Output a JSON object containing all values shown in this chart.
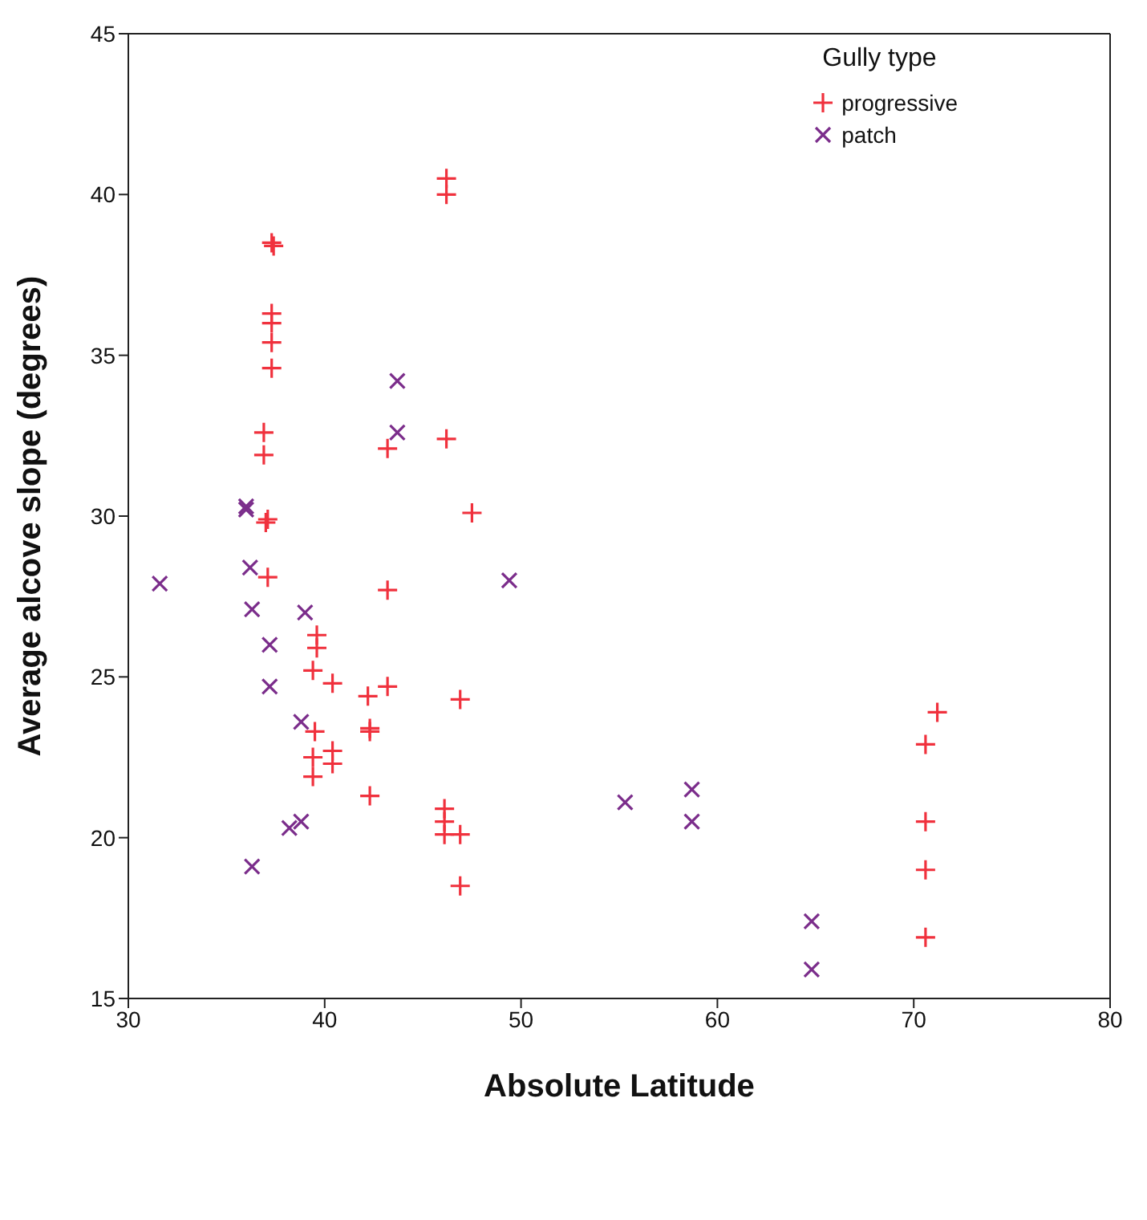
{
  "chart_data": {
    "type": "scatter",
    "xlabel": "Absolute Latitude",
    "ylabel": "Average alcove slope (degrees)",
    "legend_title": "Gully type",
    "legend": "top right",
    "xlim": [
      30,
      80
    ],
    "xticks": [
      30,
      40,
      50,
      60,
      70,
      80
    ],
    "ylim": [
      15,
      45
    ],
    "yticks": [
      15,
      20,
      25,
      30,
      35,
      40,
      45
    ],
    "series": [
      {
        "name": "progressive",
        "color": "#f0313d",
        "marker": "plus",
        "x": [
          37.3,
          37.4,
          37.3,
          37.3,
          37.3,
          37.3,
          36.9,
          36.9,
          37.1,
          37.0,
          37.1,
          46.2,
          46.2,
          43.2,
          46.2,
          47.5,
          43.2,
          39.6,
          39.6,
          39.4,
          40.4,
          39.5,
          40.4,
          40.4,
          39.4,
          39.4,
          43.2,
          42.2,
          46.9,
          42.3,
          42.3,
          42.3,
          46.1,
          46.1,
          46.1,
          46.9,
          46.9,
          71.2,
          70.6,
          70.6,
          70.6,
          70.6
        ],
        "values": [
          38.5,
          38.4,
          36.3,
          36.0,
          35.4,
          34.6,
          32.6,
          31.9,
          29.9,
          29.8,
          28.1,
          40.5,
          40.0,
          32.1,
          32.4,
          30.1,
          27.7,
          26.3,
          25.9,
          25.2,
          24.8,
          23.3,
          22.7,
          22.3,
          22.5,
          21.9,
          24.7,
          24.4,
          24.3,
          23.4,
          23.3,
          21.3,
          20.9,
          20.5,
          20.1,
          20.1,
          18.5,
          23.9,
          22.9,
          20.5,
          19.0,
          16.9
        ]
      },
      {
        "name": "patch",
        "color": "#7b2d8b",
        "marker": "cross",
        "x": [
          36.0,
          36.0,
          36.2,
          31.6,
          36.3,
          39.0,
          37.2,
          37.2,
          38.8,
          38.8,
          38.2,
          36.3,
          43.7,
          43.7,
          49.4,
          55.3,
          58.7,
          58.7,
          64.8,
          64.8
        ],
        "values": [
          30.2,
          30.3,
          28.4,
          27.9,
          27.1,
          27.0,
          26.0,
          24.7,
          23.6,
          20.5,
          20.3,
          19.1,
          34.2,
          32.6,
          28.0,
          21.1,
          21.5,
          20.5,
          17.4,
          15.9
        ]
      }
    ]
  }
}
